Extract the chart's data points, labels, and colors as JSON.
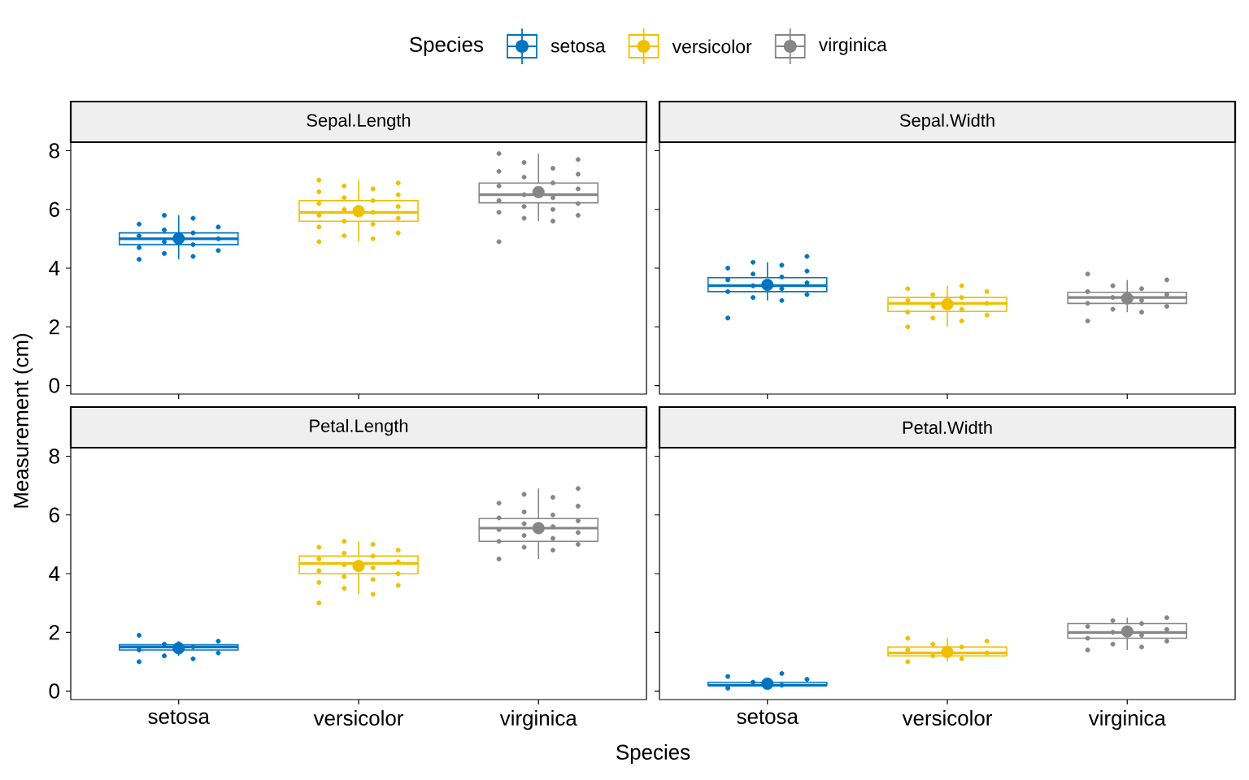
{
  "chart_data": [
    {
      "type": "box",
      "title": "Sepal.Length",
      "ylabel": "Measurement (cm)",
      "legend": "top",
      "legend_title": "Species",
      "tick_labels": "y",
      "categories": [
        "setosa",
        "versicolor",
        "virginica"
      ],
      "ylim": [
        -0.29,
        8.29
      ],
      "yticks": [
        0,
        2,
        4,
        6,
        8
      ],
      "colors": [
        "#0073C2",
        "#EFC000",
        "#868686"
      ],
      "boxes": [
        {
          "low": 4.3,
          "q1": 4.8,
          "median": 5.0,
          "q3": 5.2,
          "high": 5.8
        },
        {
          "low": 4.9,
          "q1": 5.6,
          "median": 5.9,
          "q3": 6.3,
          "high": 7.0
        },
        {
          "low": 5.6,
          "q1": 6.225,
          "median": 6.5,
          "q3": 6.9,
          "high": 7.9
        }
      ],
      "series": [
        {
          "type": "scatter",
          "color": "#0073C2",
          "x": [
            "setosa",
            "setosa",
            "setosa",
            "setosa",
            "setosa",
            "setosa",
            "setosa",
            "setosa",
            "setosa",
            "setosa",
            "setosa",
            "setosa",
            "setosa",
            "setosa",
            "setosa"
          ],
          "values": [
            4.3,
            4.4,
            4.5,
            4.6,
            4.7,
            4.8,
            4.9,
            5.0,
            5.1,
            5.2,
            5.3,
            5.4,
            5.5,
            5.7,
            5.8
          ]
        },
        {
          "type": "scatter",
          "color": "#EFC000",
          "x": [
            "versicolor",
            "versicolor",
            "versicolor",
            "versicolor",
            "versicolor",
            "versicolor",
            "versicolor",
            "versicolor",
            "versicolor",
            "versicolor",
            "versicolor",
            "versicolor",
            "versicolor",
            "versicolor",
            "versicolor",
            "versicolor",
            "versicolor",
            "versicolor",
            "versicolor",
            "versicolor",
            "versicolor"
          ],
          "values": [
            4.9,
            5.0,
            5.1,
            5.2,
            5.4,
            5.5,
            5.6,
            5.7,
            5.8,
            5.9,
            6.0,
            6.1,
            6.2,
            6.3,
            6.4,
            6.5,
            6.6,
            6.7,
            6.8,
            6.9,
            7.0
          ]
        },
        {
          "type": "scatter",
          "color": "#868686",
          "x": [
            "virginica",
            "virginica",
            "virginica",
            "virginica",
            "virginica",
            "virginica",
            "virginica",
            "virginica",
            "virginica",
            "virginica",
            "virginica",
            "virginica",
            "virginica",
            "virginica",
            "virginica",
            "virginica",
            "virginica",
            "virginica",
            "virginica",
            "virginica",
            "virginica"
          ],
          "values": [
            4.9,
            5.6,
            5.7,
            5.8,
            5.9,
            6.0,
            6.1,
            6.2,
            6.3,
            6.4,
            6.5,
            6.7,
            6.8,
            6.9,
            7.1,
            7.2,
            7.3,
            7.4,
            7.6,
            7.7,
            7.9
          ]
        },
        {
          "type": "scatter",
          "name": "setosa",
          "color": "#0073C2",
          "x": [
            "setosa"
          ],
          "values": [
            5.01
          ]
        },
        {
          "type": "scatter",
          "name": "versicolor",
          "color": "#EFC000",
          "x": [
            "versicolor"
          ],
          "values": [
            5.94
          ]
        },
        {
          "type": "scatter",
          "name": "virginica",
          "color": "#868686",
          "x": [
            "virginica"
          ],
          "values": [
            6.59
          ]
        }
      ]
    },
    {
      "type": "box",
      "title": "Sepal.Width",
      "tick_labels": false,
      "categories": [
        "setosa",
        "versicolor",
        "virginica"
      ],
      "ylim": [
        -0.29,
        8.29
      ],
      "yticks": [
        0,
        2,
        4,
        6,
        8
      ],
      "colors": [
        "#0073C2",
        "#EFC000",
        "#868686"
      ],
      "boxes": [
        {
          "low": 2.9,
          "q1": 3.2,
          "median": 3.4,
          "q3": 3.675,
          "high": 4.2
        },
        {
          "low": 2.0,
          "q1": 2.525,
          "median": 2.8,
          "q3": 3.0,
          "high": 3.4
        },
        {
          "low": 2.5,
          "q1": 2.8,
          "median": 3.0,
          "q3": 3.175,
          "high": 3.6
        }
      ],
      "series": [
        {
          "type": "scatter",
          "color": "#0073C2",
          "x": [
            "setosa",
            "setosa",
            "setosa",
            "setosa",
            "setosa",
            "setosa",
            "setosa",
            "setosa",
            "setosa",
            "setosa",
            "setosa",
            "setosa",
            "setosa",
            "setosa",
            "setosa",
            "setosa"
          ],
          "values": [
            2.3,
            2.9,
            3.0,
            3.1,
            3.2,
            3.3,
            3.4,
            3.5,
            3.6,
            3.7,
            3.8,
            3.9,
            4.0,
            4.1,
            4.2,
            4.4
          ]
        },
        {
          "type": "scatter",
          "color": "#EFC000",
          "x": [
            "versicolor",
            "versicolor",
            "versicolor",
            "versicolor",
            "versicolor",
            "versicolor",
            "versicolor",
            "versicolor",
            "versicolor",
            "versicolor",
            "versicolor",
            "versicolor",
            "versicolor",
            "versicolor"
          ],
          "values": [
            2.0,
            2.2,
            2.3,
            2.4,
            2.5,
            2.6,
            2.7,
            2.8,
            2.9,
            3.0,
            3.1,
            3.2,
            3.3,
            3.4
          ]
        },
        {
          "type": "scatter",
          "color": "#868686",
          "x": [
            "virginica",
            "virginica",
            "virginica",
            "virginica",
            "virginica",
            "virginica",
            "virginica",
            "virginica",
            "virginica",
            "virginica",
            "virginica",
            "virginica",
            "virginica"
          ],
          "values": [
            2.2,
            2.5,
            2.6,
            2.7,
            2.8,
            2.9,
            3.0,
            3.1,
            3.2,
            3.3,
            3.4,
            3.6,
            3.8
          ]
        },
        {
          "type": "scatter",
          "color": "#0073C2",
          "x": [
            "setosa"
          ],
          "values": [
            3.43
          ]
        },
        {
          "type": "scatter",
          "color": "#EFC000",
          "x": [
            "versicolor"
          ],
          "values": [
            2.77
          ]
        },
        {
          "type": "scatter",
          "color": "#868686",
          "x": [
            "virginica"
          ],
          "values": [
            2.97
          ]
        }
      ]
    },
    {
      "type": "box",
      "title": "Petal.Length",
      "xlabel": "Species",
      "categories": [
        "setosa",
        "versicolor",
        "virginica"
      ],
      "ylim": [
        -0.29,
        8.29
      ],
      "yticks": [
        0,
        2,
        4,
        6,
        8
      ],
      "colors": [
        "#0073C2",
        "#EFC000",
        "#868686"
      ],
      "boxes": [
        {
          "low": 1.2,
          "q1": 1.4,
          "median": 1.5,
          "q3": 1.575,
          "high": 1.7
        },
        {
          "low": 3.3,
          "q1": 4.0,
          "median": 4.35,
          "q3": 4.6,
          "high": 5.1
        },
        {
          "low": 4.5,
          "q1": 5.1,
          "median": 5.55,
          "q3": 5.875,
          "high": 6.9
        }
      ],
      "series": [
        {
          "type": "scatter",
          "color": "#0073C2",
          "x": [
            "setosa",
            "setosa",
            "setosa",
            "setosa",
            "setosa",
            "setosa",
            "setosa",
            "setosa",
            "setosa"
          ],
          "values": [
            1.0,
            1.1,
            1.2,
            1.3,
            1.4,
            1.5,
            1.6,
            1.7,
            1.9
          ]
        },
        {
          "type": "scatter",
          "color": "#EFC000",
          "x": [
            "versicolor",
            "versicolor",
            "versicolor",
            "versicolor",
            "versicolor",
            "versicolor",
            "versicolor",
            "versicolor",
            "versicolor",
            "versicolor",
            "versicolor",
            "versicolor",
            "versicolor",
            "versicolor",
            "versicolor",
            "versicolor",
            "versicolor",
            "versicolor",
            "versicolor"
          ],
          "values": [
            3.0,
            3.3,
            3.5,
            3.6,
            3.7,
            3.8,
            3.9,
            4.0,
            4.1,
            4.2,
            4.3,
            4.4,
            4.5,
            4.6,
            4.7,
            4.8,
            4.9,
            5.0,
            5.1
          ]
        },
        {
          "type": "scatter",
          "color": "#868686",
          "x": [
            "virginica",
            "virginica",
            "virginica",
            "virginica",
            "virginica",
            "virginica",
            "virginica",
            "virginica",
            "virginica",
            "virginica",
            "virginica",
            "virginica",
            "virginica",
            "virginica",
            "virginica",
            "virginica",
            "virginica",
            "virginica",
            "virginica",
            "virginica"
          ],
          "values": [
            4.5,
            4.8,
            4.9,
            5.0,
            5.1,
            5.2,
            5.3,
            5.4,
            5.5,
            5.6,
            5.7,
            5.8,
            5.9,
            6.0,
            6.1,
            6.3,
            6.4,
            6.6,
            6.7,
            6.9
          ]
        },
        {
          "type": "scatter",
          "color": "#0073C2",
          "x": [
            "setosa"
          ],
          "values": [
            1.46
          ]
        },
        {
          "type": "scatter",
          "color": "#EFC000",
          "x": [
            "versicolor"
          ],
          "values": [
            4.26
          ]
        },
        {
          "type": "scatter",
          "color": "#868686",
          "x": [
            "virginica"
          ],
          "values": [
            5.55
          ]
        }
      ]
    },
    {
      "type": "box",
      "title": "Petal.Width",
      "tick_labels": "x",
      "categories": [
        "setosa",
        "versicolor",
        "virginica"
      ],
      "ylim": [
        -0.29,
        8.29
      ],
      "yticks": [
        0,
        2,
        4,
        6,
        8
      ],
      "colors": [
        "#0073C2",
        "#EFC000",
        "#868686"
      ],
      "boxes": [
        {
          "low": 0.1,
          "q1": 0.2,
          "median": 0.2,
          "q3": 0.3,
          "high": 0.4
        },
        {
          "low": 1.0,
          "q1": 1.2,
          "median": 1.3,
          "q3": 1.5,
          "high": 1.8
        },
        {
          "low": 1.4,
          "q1": 1.8,
          "median": 2.0,
          "q3": 2.3,
          "high": 2.5
        }
      ],
      "series": [
        {
          "type": "scatter",
          "color": "#0073C2",
          "x": [
            "setosa",
            "setosa",
            "setosa",
            "setosa",
            "setosa",
            "setosa"
          ],
          "values": [
            0.1,
            0.2,
            0.3,
            0.4,
            0.5,
            0.6
          ]
        },
        {
          "type": "scatter",
          "color": "#EFC000",
          "x": [
            "versicolor",
            "versicolor",
            "versicolor",
            "versicolor",
            "versicolor",
            "versicolor",
            "versicolor",
            "versicolor",
            "versicolor"
          ],
          "values": [
            1.0,
            1.1,
            1.2,
            1.3,
            1.4,
            1.5,
            1.6,
            1.7,
            1.8
          ]
        },
        {
          "type": "scatter",
          "color": "#868686",
          "x": [
            "virginica",
            "virginica",
            "virginica",
            "virginica",
            "virginica",
            "virginica",
            "virginica",
            "virginica",
            "virginica",
            "virginica",
            "virginica",
            "virginica"
          ],
          "values": [
            1.4,
            1.5,
            1.6,
            1.7,
            1.8,
            1.9,
            2.0,
            2.1,
            2.2,
            2.3,
            2.4,
            2.5
          ]
        },
        {
          "type": "scatter",
          "color": "#0073C2",
          "x": [
            "setosa"
          ],
          "values": [
            0.25
          ]
        },
        {
          "type": "scatter",
          "color": "#EFC000",
          "x": [
            "versicolor"
          ],
          "values": [
            1.33
          ]
        },
        {
          "type": "scatter",
          "color": "#868686",
          "x": [
            "virginica"
          ],
          "values": [
            2.03
          ]
        }
      ]
    }
  ]
}
